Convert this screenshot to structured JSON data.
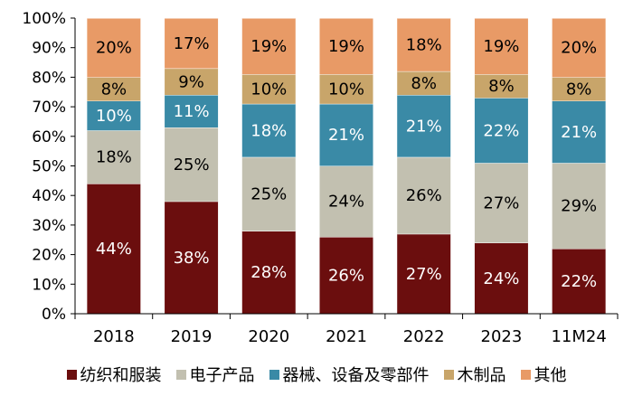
{
  "chart_data": {
    "type": "bar",
    "stacked": true,
    "normalized": true,
    "categories": [
      "2018",
      "2019",
      "2020",
      "2021",
      "2022",
      "2023",
      "11M24"
    ],
    "series": [
      {
        "name": "纺织和服装",
        "color": "#6b0e0e",
        "label_color": "#ffffff",
        "values": [
          44,
          38,
          28,
          26,
          27,
          24,
          22
        ],
        "labels": [
          "44%",
          "38%",
          "28%",
          "26%",
          "27%",
          "24%",
          "22%"
        ]
      },
      {
        "name": "电子产品",
        "color": "#c2c0b0",
        "label_color": "#000000",
        "values": [
          18,
          25,
          25,
          24,
          26,
          27,
          29
        ],
        "labels": [
          "18%",
          "25%",
          "25%",
          "24%",
          "26%",
          "27%",
          "29%"
        ]
      },
      {
        "name": "器械、设备及零部件",
        "color": "#3a8aa6",
        "label_color": "#ffffff",
        "values": [
          10,
          11,
          18,
          21,
          21,
          22,
          21
        ],
        "labels": [
          "10%",
          "11%",
          "18%",
          "21%",
          "21%",
          "22%",
          "21%"
        ]
      },
      {
        "name": "木制品",
        "color": "#c8a56a",
        "label_color": "#000000",
        "values": [
          8,
          9,
          10,
          10,
          8,
          8,
          8
        ],
        "labels": [
          "8%",
          "9%",
          "10%",
          "10%",
          "8%",
          "8%",
          "8%"
        ]
      },
      {
        "name": "其他",
        "color": "#e89a66",
        "label_color": "#000000",
        "values": [
          20,
          17,
          19,
          19,
          18,
          19,
          20
        ],
        "labels": [
          "20%",
          "17%",
          "19%",
          "19%",
          "18%",
          "19%",
          "20%"
        ]
      }
    ],
    "yticks": [
      "0%",
      "10%",
      "20%",
      "30%",
      "40%",
      "50%",
      "60%",
      "70%",
      "80%",
      "90%",
      "100%"
    ],
    "ylim": [
      0,
      100
    ],
    "title": "",
    "xlabel": "",
    "ylabel": "",
    "grid": false,
    "legend_position": "bottom"
  }
}
